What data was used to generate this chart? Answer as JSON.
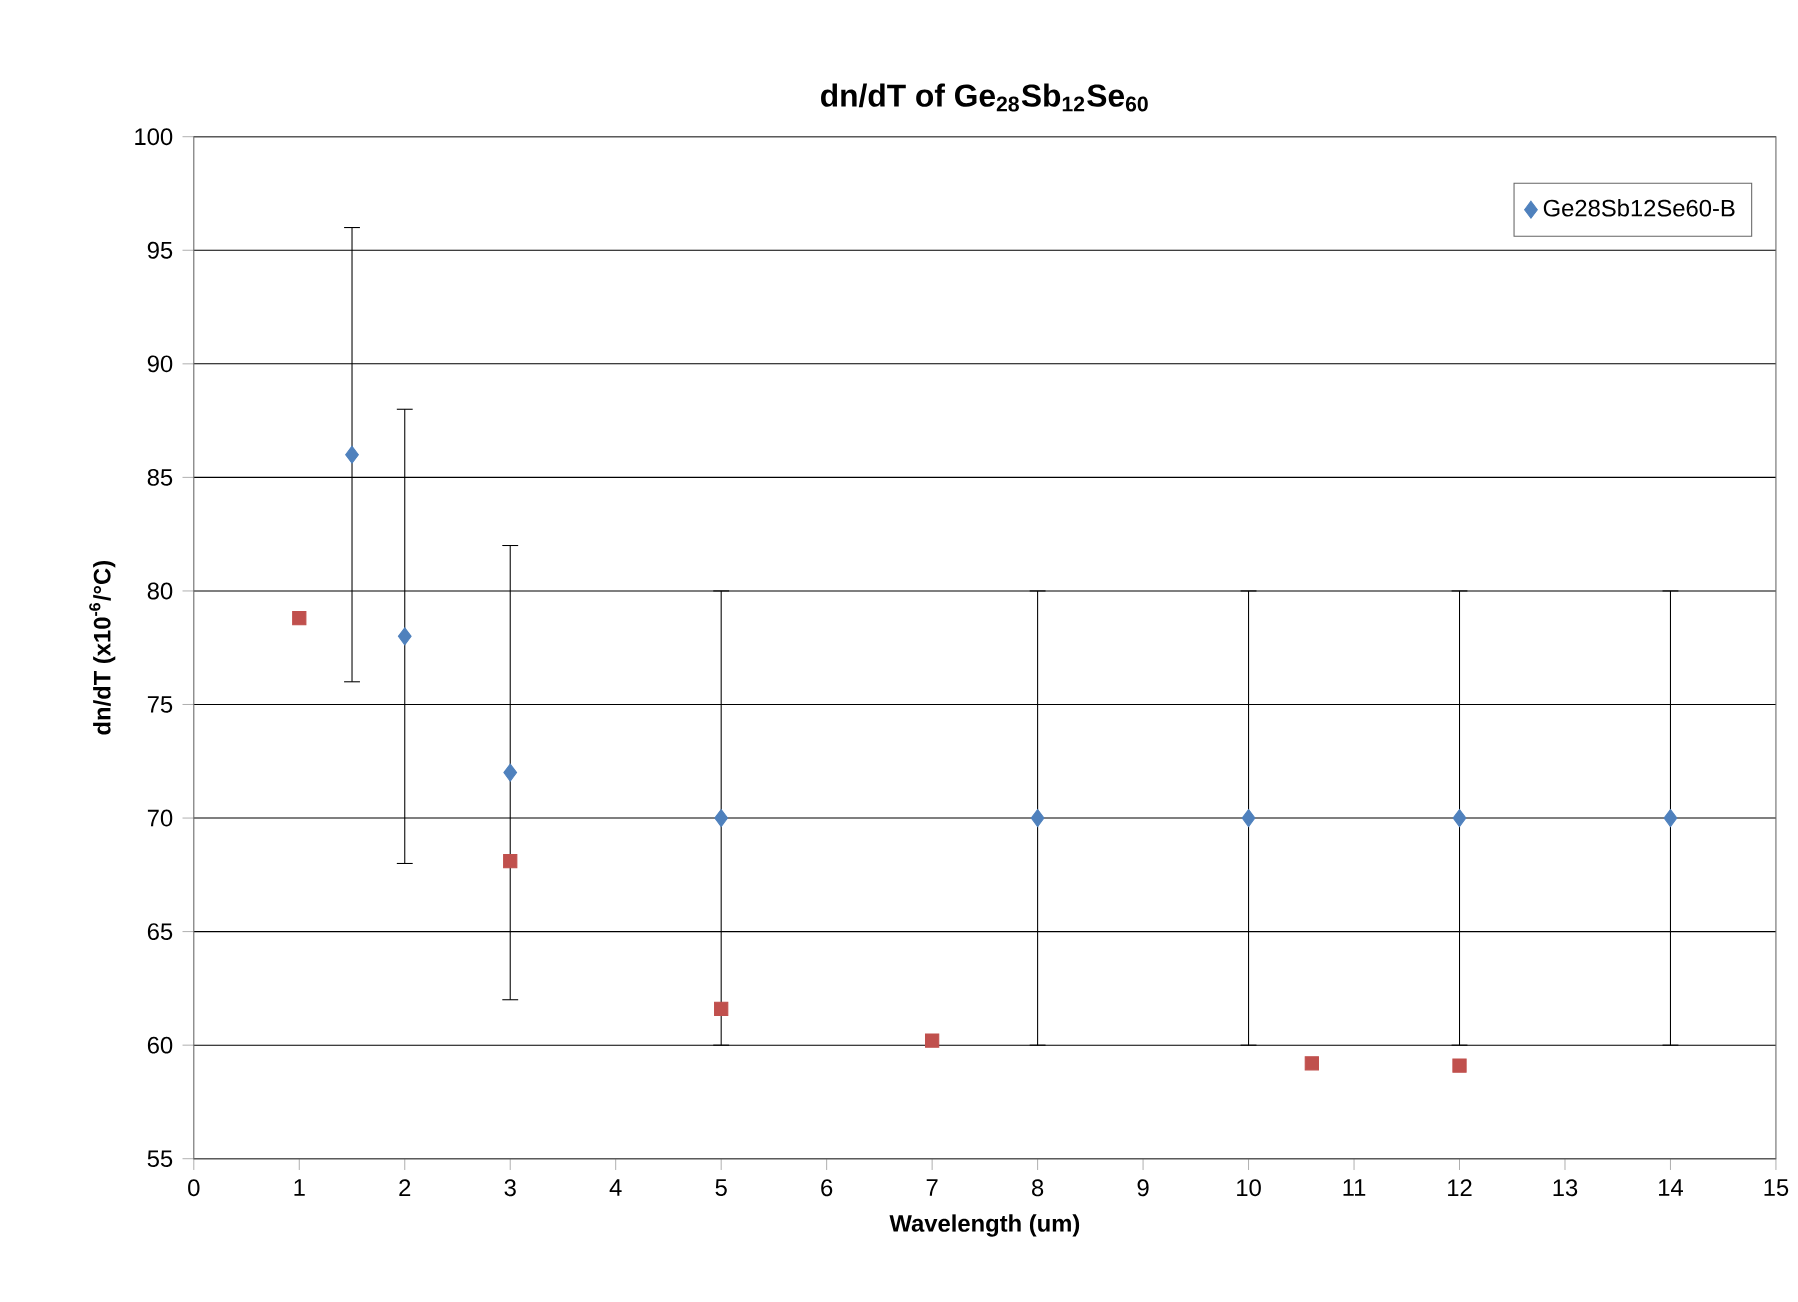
{
  "chart_data": {
    "type": "scatter",
    "title": "dn/dT of Ge$_{28}$Sb$_{12}$Se$_{60}$",
    "xlabel": "Wavelength (um)",
    "ylabel": "dn/dT (x10$^{-6}$/°C)",
    "xlim": [
      0,
      15
    ],
    "xticks": [
      0,
      1,
      2,
      3,
      4,
      5,
      6,
      7,
      8,
      9,
      10,
      11,
      12,
      13,
      14,
      15
    ],
    "ylim": [
      55,
      100
    ],
    "yticks": [
      55,
      60,
      65,
      70,
      75,
      80,
      85,
      90,
      95,
      100
    ],
    "grid": "y",
    "legend": "top right",
    "series": [
      {
        "name": "Ge28Sb12Se60-B",
        "color": "#4f81bd",
        "marker": "diamond",
        "x": [
          1.5,
          2,
          3,
          5,
          8,
          10,
          12,
          14
        ],
        "values": [
          86,
          78,
          72,
          70,
          70,
          70,
          70,
          70
        ],
        "errors": [
          10,
          10,
          10,
          10,
          10,
          10,
          10,
          10
        ]
      },
      {
        "color": "#c0504d",
        "marker": "square",
        "x": [
          1,
          3,
          5,
          7,
          10.6,
          12
        ],
        "values": [
          78.8,
          68.1,
          61.6,
          60.2,
          59.2,
          59.1
        ]
      }
    ]
  }
}
